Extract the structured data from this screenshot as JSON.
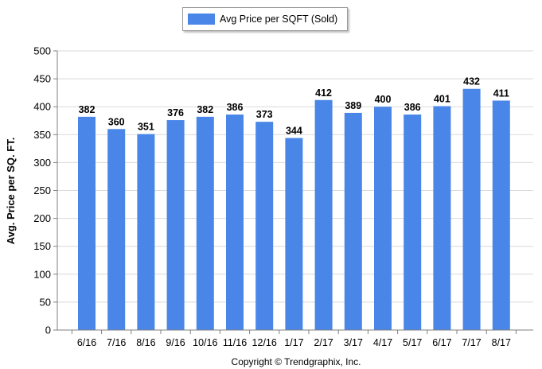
{
  "chart_data": {
    "type": "bar",
    "categories": [
      "6/16",
      "7/16",
      "8/16",
      "9/16",
      "10/16",
      "11/16",
      "12/16",
      "1/17",
      "2/17",
      "3/17",
      "4/17",
      "5/17",
      "6/17",
      "7/17",
      "8/17"
    ],
    "series": [
      {
        "name": "Avg Price per SQFT (Sold)",
        "values": [
          382,
          360,
          351,
          376,
          382,
          386,
          373,
          344,
          412,
          389,
          400,
          386,
          401,
          432,
          411
        ]
      }
    ],
    "ylabel": "Avg. Price per SQ. FT.",
    "xlabel": "",
    "ylim": [
      0,
      500
    ],
    "yticks": [
      0,
      50,
      100,
      150,
      200,
      250,
      300,
      350,
      400,
      450,
      500
    ],
    "grid": true,
    "legend": "top-center",
    "data_labels": true,
    "colors": {
      "bar": "#4a86e8",
      "grid": "#d9d9d9",
      "axis": "#7f7f7f"
    }
  },
  "footer": {
    "copyright": "Copyright © Trendgraphix, Inc."
  }
}
